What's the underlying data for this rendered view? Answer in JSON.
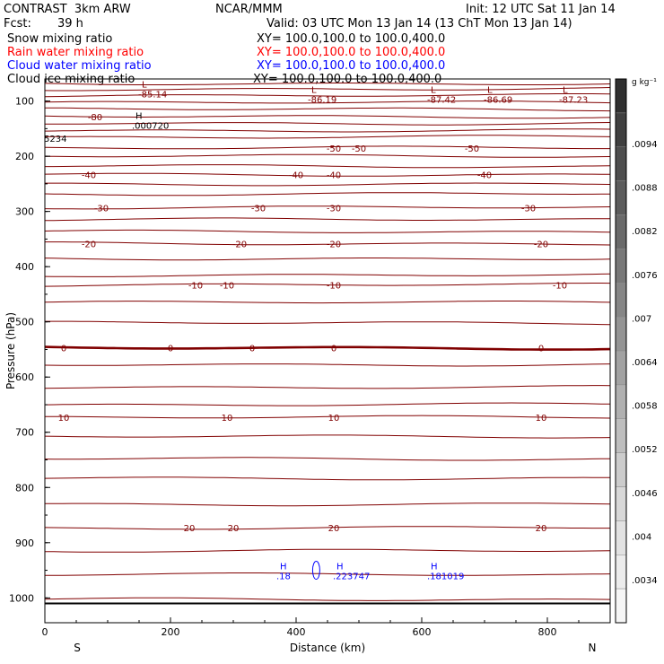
{
  "header": {
    "model": "CONTRAST  3km ARW",
    "org": "NCAR/MMM",
    "init": "Init: 12 UTC Sat 11 Jan 14",
    "fcst_label": "Fcst:",
    "fcst_value": "39 h",
    "valid": "Valid: 03 UTC Mon 13 Jan 14 (13 ChT Mon 13 Jan 14)"
  },
  "fields": [
    {
      "name": "Snow mixing ratio",
      "xy": "XY= 100.0,100.0 to 100.0,400.0",
      "color": "#000000"
    },
    {
      "name": "Rain water mixing ratio",
      "xy": "XY= 100.0,100.0 to 100.0,400.0",
      "color": "#ff0000"
    },
    {
      "name": "Cloud water mixing ratio",
      "xy": "XY= 100.0,100.0 to 100.0,400.0",
      "color": "#0000ff"
    },
    {
      "name": "Cloud ice mixing ratio",
      "xy": "XY= 100.0,100.0 to 100.0,400.0",
      "color": "#000000"
    }
  ],
  "chart_data": {
    "type": "contour",
    "xlabel": "Distance (km)",
    "ylabel": "Pressure (hPa)",
    "xlim": [
      0,
      900
    ],
    "ylim": [
      1045,
      60
    ],
    "xticks": [
      0,
      200,
      400,
      600,
      800
    ],
    "yticks": [
      100,
      200,
      300,
      400,
      500,
      600,
      700,
      800,
      900,
      1000
    ],
    "x_end_labels": [
      "S",
      "N"
    ],
    "contour_color": "#800000",
    "zero_contour_pressure": 547,
    "contours": [
      {
        "p": 68,
        "labels": []
      },
      {
        "p": 78,
        "labels": []
      },
      {
        "p": 90,
        "labels": []
      },
      {
        "p": 103,
        "labels": []
      },
      {
        "p": 115,
        "labels": []
      },
      {
        "p": 128,
        "labels": [
          {
            "x": 80,
            "text": "-80"
          }
        ]
      },
      {
        "p": 140,
        "labels": []
      },
      {
        "p": 153,
        "labels": []
      },
      {
        "p": 165,
        "labels": []
      },
      {
        "p": 185,
        "labels": [
          {
            "x": 460,
            "text": "-50"
          },
          {
            "x": 500,
            "text": "-50"
          },
          {
            "x": 680,
            "text": "-50"
          }
        ]
      },
      {
        "p": 200,
        "labels": []
      },
      {
        "p": 218,
        "labels": []
      },
      {
        "p": 233,
        "labels": [
          {
            "x": 70,
            "text": "-40"
          },
          {
            "x": 400,
            "text": "-40"
          },
          {
            "x": 460,
            "text": "-40"
          },
          {
            "x": 700,
            "text": "-40"
          }
        ]
      },
      {
        "p": 250,
        "labels": []
      },
      {
        "p": 268,
        "labels": []
      },
      {
        "p": 293,
        "labels": [
          {
            "x": 90,
            "text": "-30"
          },
          {
            "x": 340,
            "text": "-30"
          },
          {
            "x": 460,
            "text": "-30"
          },
          {
            "x": 770,
            "text": "-30"
          }
        ]
      },
      {
        "p": 315,
        "labels": []
      },
      {
        "p": 337,
        "labels": []
      },
      {
        "p": 358,
        "labels": [
          {
            "x": 70,
            "text": "-20"
          },
          {
            "x": 310,
            "text": "-20"
          },
          {
            "x": 460,
            "text": "-20"
          },
          {
            "x": 790,
            "text": "-20"
          }
        ]
      },
      {
        "p": 385,
        "labels": []
      },
      {
        "p": 415,
        "labels": []
      },
      {
        "p": 433,
        "labels": [
          {
            "x": 240,
            "text": "-10"
          },
          {
            "x": 290,
            "text": "-10"
          },
          {
            "x": 460,
            "text": "-10"
          },
          {
            "x": 820,
            "text": "-10"
          }
        ]
      },
      {
        "p": 465,
        "labels": []
      },
      {
        "p": 502,
        "labels": []
      },
      {
        "p": 547,
        "labels": [
          {
            "x": 30,
            "text": "0"
          },
          {
            "x": 200,
            "text": "0"
          },
          {
            "x": 330,
            "text": "0"
          },
          {
            "x": 460,
            "text": "0"
          },
          {
            "x": 790,
            "text": "0"
          }
        ]
      },
      {
        "p": 577,
        "labels": []
      },
      {
        "p": 618,
        "labels": []
      },
      {
        "p": 650,
        "labels": []
      },
      {
        "p": 673,
        "labels": [
          {
            "x": 30,
            "text": "10"
          },
          {
            "x": 290,
            "text": "10"
          },
          {
            "x": 460,
            "text": "10"
          },
          {
            "x": 790,
            "text": "10"
          }
        ]
      },
      {
        "p": 708,
        "labels": []
      },
      {
        "p": 748,
        "labels": []
      },
      {
        "p": 783,
        "labels": []
      },
      {
        "p": 830,
        "labels": []
      },
      {
        "p": 873,
        "labels": [
          {
            "x": 230,
            "text": "20"
          },
          {
            "x": 300,
            "text": "20"
          },
          {
            "x": 460,
            "text": "20"
          },
          {
            "x": 790,
            "text": "20"
          }
        ]
      },
      {
        "p": 915,
        "labels": []
      },
      {
        "p": 958,
        "labels": []
      },
      {
        "p": 1003,
        "labels": []
      }
    ],
    "extrema": [
      {
        "kind": "L",
        "text": "-85.14",
        "x": 160,
        "p": 85,
        "color": "#800000"
      },
      {
        "kind": "L",
        "text": "-86.19",
        "x": 430,
        "p": 95,
        "color": "#800000"
      },
      {
        "kind": "L",
        "text": "-87.42",
        "x": 620,
        "p": 95,
        "color": "#800000"
      },
      {
        "kind": "L",
        "text": "-86.69",
        "x": 710,
        "p": 95,
        "color": "#800000"
      },
      {
        "kind": "L",
        "text": "-87.23",
        "x": 830,
        "p": 95,
        "color": "#800000"
      },
      {
        "kind": "H",
        "text": ".000720",
        "x": 150,
        "p": 142,
        "color": "#000000"
      },
      {
        "kind": "",
        "text": "5234",
        "x": 10,
        "p": 166,
        "color": "#000000"
      },
      {
        "kind": "H",
        "text": ".18",
        "x": 380,
        "p": 958,
        "color": "#0000ff"
      },
      {
        "kind": "H",
        "text": ".223747",
        "x": 470,
        "p": 958,
        "color": "#0000ff"
      },
      {
        "kind": "H",
        "text": ".181019",
        "x": 620,
        "p": 958,
        "color": "#0000ff"
      }
    ],
    "colorbar": {
      "unit": "g kg⁻¹",
      "ticks": [
        ".0094",
        ".0088",
        ".0082",
        ".0076",
        ".007",
        ".0064",
        ".0058",
        ".0052",
        ".0046",
        ".004",
        ".0034"
      ],
      "fills": [
        "#303030",
        "#404040",
        "#4e4e4e",
        "#5c5c5c",
        "#6a6a6a",
        "#787878",
        "#868686",
        "#949494",
        "#a2a2a2",
        "#b0b0b0",
        "#bebebe",
        "#cccccc",
        "#d8d8d8",
        "#e2e2e2",
        "#ececec",
        "#f6f6f6"
      ]
    }
  }
}
